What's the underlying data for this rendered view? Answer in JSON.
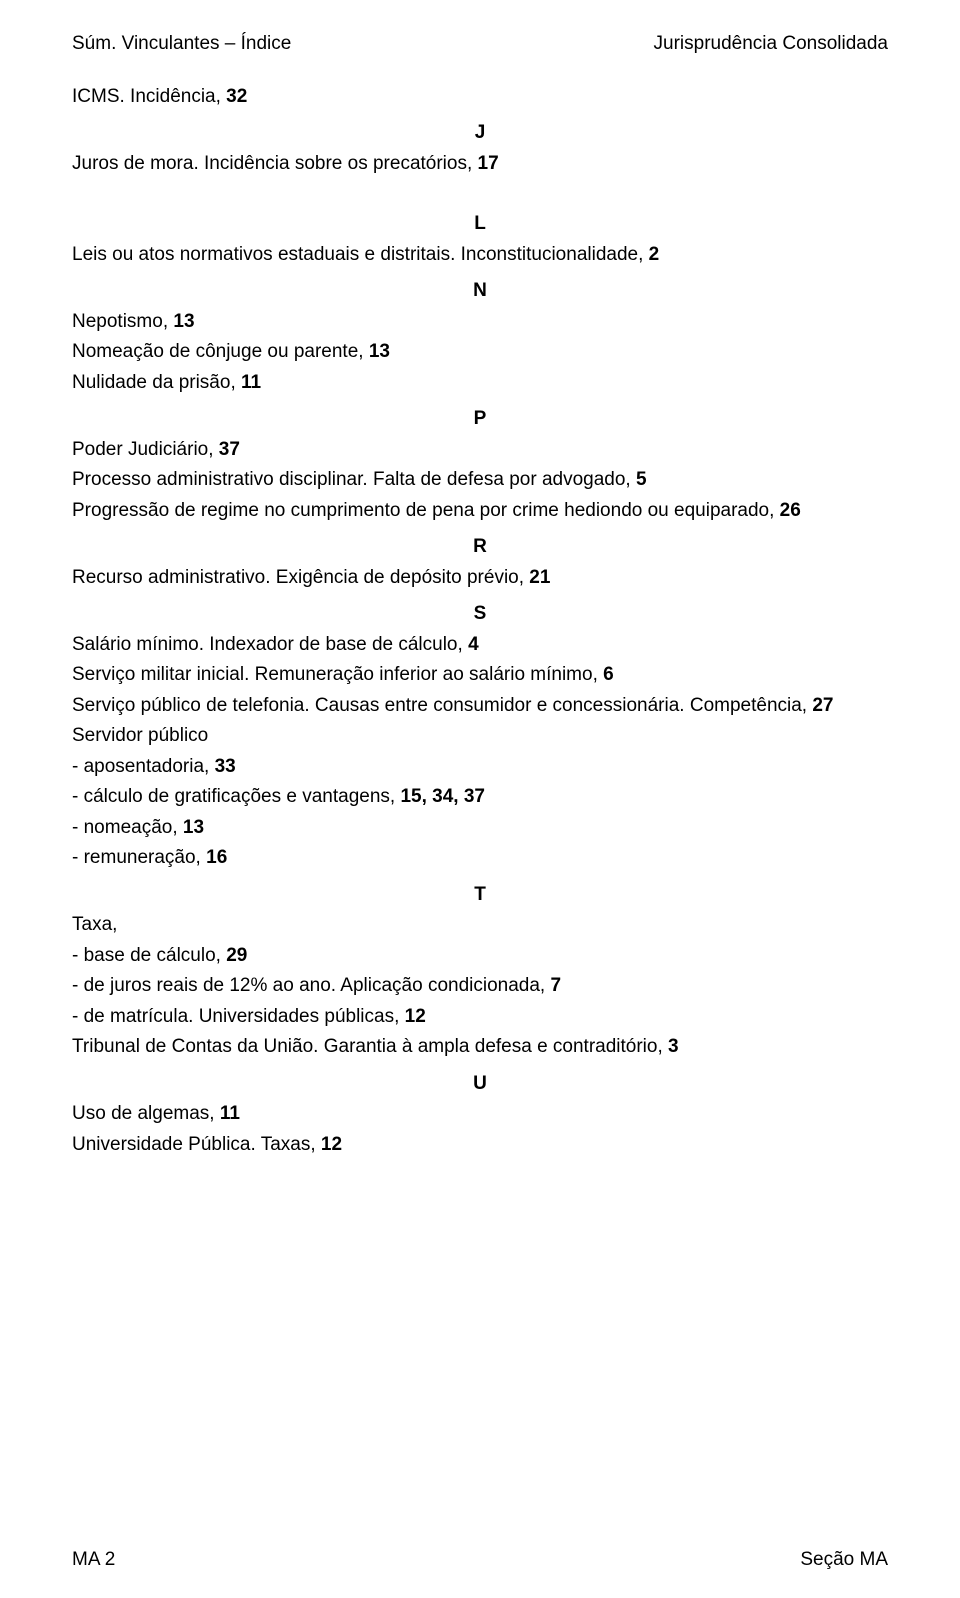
{
  "header": {
    "left": "Súm. Vinculantes – Índice",
    "right": "Jurisprudência Consolidada"
  },
  "intro": {
    "line1_text": "ICMS. Incidência, ",
    "line1_num": "32"
  },
  "sections": {
    "J": {
      "letter": "J",
      "e1_text": "Juros de mora. Incidência sobre os precatórios, ",
      "e1_num": "17"
    },
    "L": {
      "letter": "L",
      "e1_text": "Leis ou atos normativos estaduais e distritais. Inconstitucionalidade, ",
      "e1_num": "2"
    },
    "N": {
      "letter": "N",
      "e1_text": "Nepotismo, ",
      "e1_num": "13",
      "e2_text": "Nomeação de cônjuge ou parente, ",
      "e2_num": "13",
      "e3_text": "Nulidade da prisão, ",
      "e3_num": "11"
    },
    "P": {
      "letter": "P",
      "e1_text": "Poder Judiciário, ",
      "e1_num": "37",
      "e2_text": "Processo administrativo disciplinar. Falta de defesa por advogado, ",
      "e2_num": "5",
      "e3_text": "Progressão de regime no cumprimento de pena por crime hediondo ou equiparado, ",
      "e3_num": "26"
    },
    "R": {
      "letter": "R",
      "e1_text": "Recurso administrativo. Exigência de depósito prévio, ",
      "e1_num": "21"
    },
    "S": {
      "letter": "S",
      "e1_text": "Salário mínimo. Indexador de base de cálculo, ",
      "e1_num": "4",
      "e2_text": "Serviço militar inicial. Remuneração inferior ao salário mínimo, ",
      "e2_num": "6",
      "e3_text": "Serviço público de telefonia. Causas entre consumidor e concessionária. Competência, ",
      "e3_num": "27",
      "e4_text": "Servidor público",
      "s1_text": "- aposentadoria, ",
      "s1_num": "33",
      "s2_text": "- cálculo de gratificações e vantagens, ",
      "s2_num": "15, 34, 37",
      "s3_text": "- nomeação, ",
      "s3_num": "13",
      "s4_text": "- remuneração, ",
      "s4_num": "16"
    },
    "T": {
      "letter": "T",
      "e1_text": "Taxa,",
      "s1_text": "- base de cálculo, ",
      "s1_num": "29",
      "s2_text": "- de juros reais de 12% ao ano. Aplicação condicionada, ",
      "s2_num": "7",
      "s3_text": "- de matrícula. Universidades públicas, ",
      "s3_num": "12",
      "e2_text": "Tribunal de Contas da União. Garantia à ampla defesa e contraditório, ",
      "e2_num": "3"
    },
    "U": {
      "letter": "U",
      "e1_text": "Uso de algemas, ",
      "e1_num": "11",
      "e2_text": "Universidade Pública. Taxas, ",
      "e2_num": "12"
    }
  },
  "footer": {
    "left": "MA 2",
    "right": "Seção MA"
  }
}
